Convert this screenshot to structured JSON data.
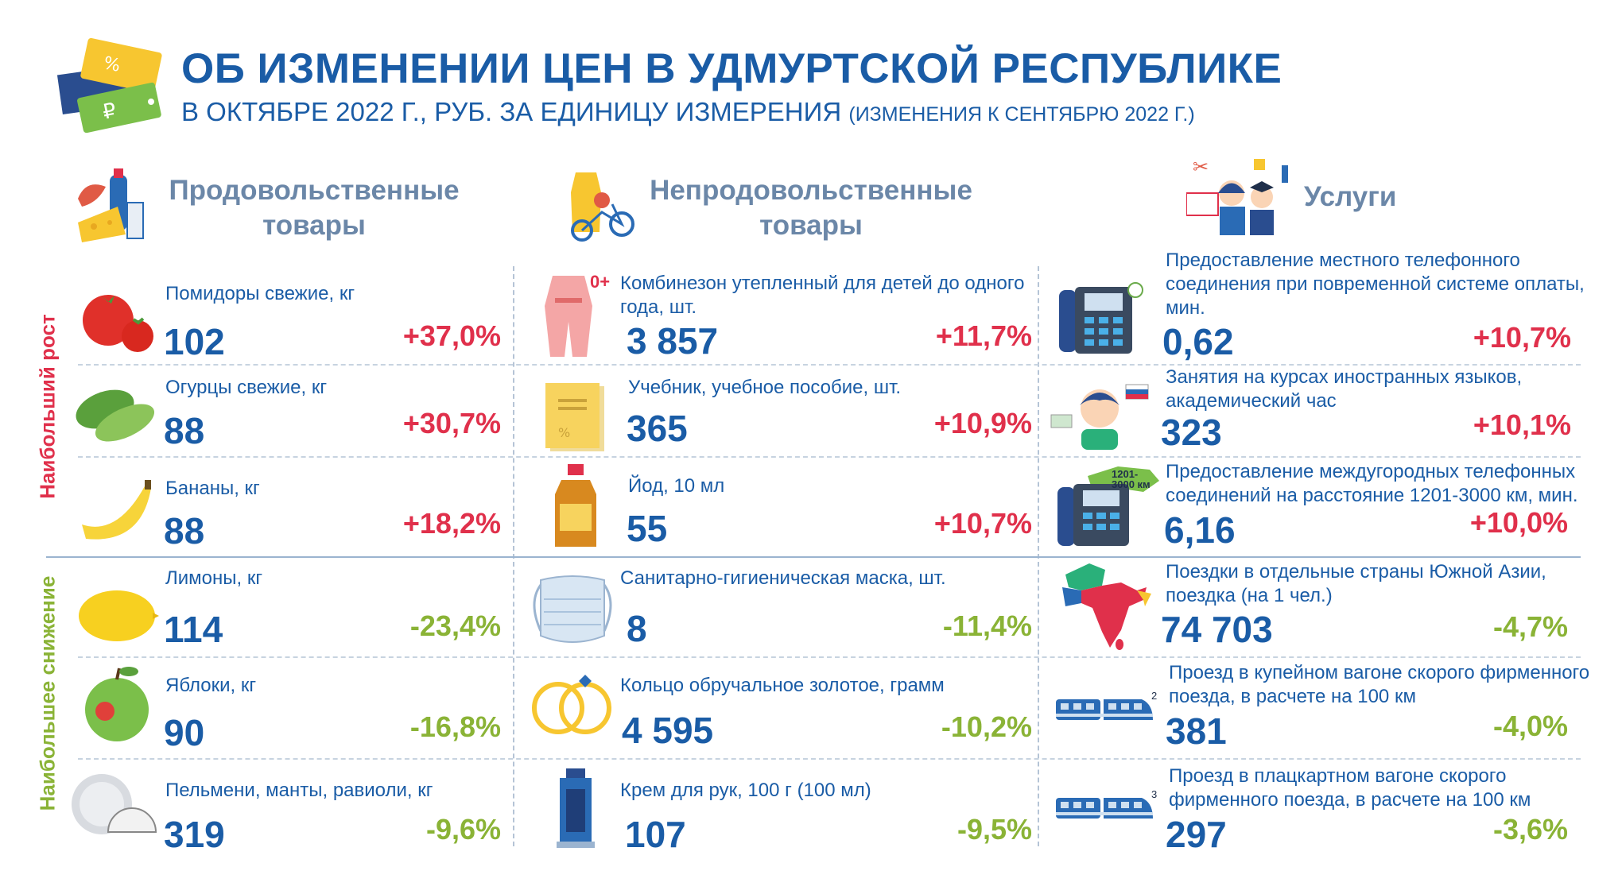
{
  "header": {
    "title": "ОБ ИЗМЕНЕНИИ ЦЕН В УДМУРТСКОЙ РЕСПУБЛИКЕ",
    "subtitle": "В ОКТЯБРЕ 2022 Г., РУБ. ЗА ЕДИНИЦУ ИЗМЕРЕНИЯ",
    "subtitle_note": "(ИЗМЕНЕНИЯ К СЕНТЯБРЮ 2022 Г.)"
  },
  "categories": {
    "food": "Продовольственные товары",
    "nonfood": "Непродовольственные товары",
    "services": "Услуги"
  },
  "side_labels": {
    "growth": "Наибольший рост",
    "decline": "Наибольшее снижение"
  },
  "colors": {
    "title": "#1a5ca6",
    "growth": "#e0304b",
    "decline": "#8ab336",
    "category": "#6b87a8"
  },
  "food": [
    {
      "name": "Помидоры свежие, кг",
      "price": "102",
      "change": "+37,0%",
      "icon": "tomato-icon"
    },
    {
      "name": "Огурцы свежие, кг",
      "price": "88",
      "change": "+30,7%",
      "icon": "cucumber-icon"
    },
    {
      "name": "Бананы, кг",
      "price": "88",
      "change": "+18,2%",
      "icon": "banana-icon"
    },
    {
      "name": "Лимоны, кг",
      "price": "114",
      "change": "-23,4%",
      "icon": "lemon-icon"
    },
    {
      "name": "Яблоки, кг",
      "price": "90",
      "change": "-16,8%",
      "icon": "apple-icon"
    },
    {
      "name": "Пельмени, манты, равиоли, кг",
      "price": "319",
      "change": "-9,6%",
      "icon": "dumplings-icon"
    }
  ],
  "nonfood": [
    {
      "name": "Комбинезон утепленный для детей до одного года, шт.",
      "price": "3 857",
      "change": "+11,7%",
      "icon": "overalls-icon",
      "badge": "0+"
    },
    {
      "name": "Учебник, учебное пособие, шт.",
      "price": "365",
      "change": "+10,9%",
      "icon": "textbook-icon"
    },
    {
      "name": "Йод, 10 мл",
      "price": "55",
      "change": "+10,7%",
      "icon": "iodine-icon"
    },
    {
      "name": "Санитарно-гигиеническая маска, шт.",
      "price": "8",
      "change": "-11,4%",
      "icon": "mask-icon"
    },
    {
      "name": "Кольцо обручальное золотое, грамм",
      "price": "4 595",
      "change": "-10,2%",
      "icon": "rings-icon"
    },
    {
      "name": "Крем для рук, 100 г (100 мл)",
      "price": "107",
      "change": "-9,5%",
      "icon": "cream-tube-icon"
    }
  ],
  "services": [
    {
      "name": "Предоставление местного телефонного соединения при повременной системе оплаты, мин.",
      "price": "0,62",
      "change": "+10,7%",
      "icon": "phone-icon"
    },
    {
      "name": "Занятия на курсах иностранных языков, академический час",
      "price": "323",
      "change": "+10,1%",
      "icon": "student-icon"
    },
    {
      "name": "Предоставление междугородных телефонных соединений на расстояние 1201-3000 км, мин.",
      "price": "6,16",
      "change": "+10,0%",
      "icon": "phone-map-icon",
      "badge": "1201-3000 км"
    },
    {
      "name": "Поездки в отдельные страны Южной Азии, поездка (на 1 чел.)",
      "price": "74 703",
      "change": "-4,7%",
      "icon": "south-asia-map-icon"
    },
    {
      "name": "Проезд в купейном вагоне скорого фирменного поезда, в расчете на 100 км",
      "price": "381",
      "change": "-4,0%",
      "icon": "train-icon",
      "badge": "2"
    },
    {
      "name": "Проезд в плацкартном вагоне скорого фирменного поезда, в расчете на 100 км",
      "price": "297",
      "change": "-3,6%",
      "icon": "train-icon",
      "badge": "3"
    }
  ]
}
